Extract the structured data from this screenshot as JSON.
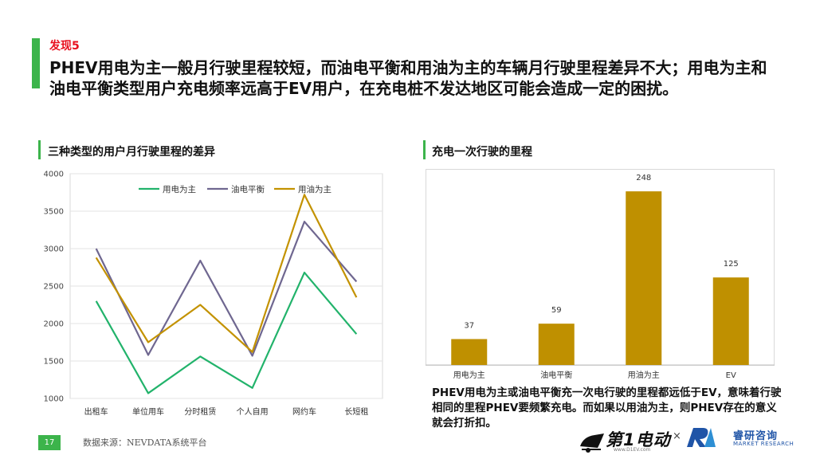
{
  "header": {
    "finding_tag": "发现5",
    "headline": "PHEV用电为主一般月行驶里程较短，而油电平衡和用油为主的车辆月行驶里程差异不大；用电为主和油电平衡类型用户充电频率远高于EV用户，在充电桩不发达地区可能会造成一定的困扰。"
  },
  "left_section": {
    "title": "三种类型的用户月行驶里程的差异"
  },
  "right_section": {
    "title": "充电一次行驶的里程"
  },
  "note": "PHEV用电为主或油电平衡充一次电行驶的里程都远低于EV，意味着行驶相同的里程PHEV要频繁充电。而如果以用油为主，则PHEV存在的意义就会打折扣。",
  "footer": {
    "page_number": "17",
    "source": "数据来源：NEVDATA系统平台",
    "logo1_text": "第1电动",
    "logo1_sub": "www.D1EV.com",
    "times_sign": "×",
    "logo2_cn": "睿研咨询",
    "logo2_en": "MARKET RESEARCH"
  },
  "colors": {
    "accent_green": "#3cb44b",
    "finding_red": "#e8101e",
    "series_electric": "#22b36b",
    "series_balanced": "#6f6790",
    "series_fuel": "#c39200",
    "bar": "#bf9000",
    "logo_blue": "#1f54a7"
  },
  "chart_data": [
    {
      "type": "line",
      "title": "",
      "categories": [
        "出租车",
        "单位用车",
        "分时租赁",
        "个人自用",
        "网约车",
        "长短租"
      ],
      "series": [
        {
          "name": "用电为主",
          "color": "#22b36b",
          "values": [
            2300,
            1070,
            1560,
            1140,
            2680,
            1860
          ]
        },
        {
          "name": "油电平衡",
          "color": "#6f6790",
          "values": [
            3000,
            1580,
            2840,
            1570,
            3360,
            2560
          ]
        },
        {
          "name": "用油为主",
          "color": "#c39200",
          "values": [
            2880,
            1750,
            2250,
            1620,
            3720,
            2350
          ]
        }
      ],
      "y_ticks": [
        1000,
        1500,
        2000,
        2500,
        3000,
        3500,
        4000
      ],
      "ylim": [
        1000,
        4000
      ],
      "legend": "top"
    },
    {
      "type": "bar",
      "title": "",
      "categories": [
        "用电为主",
        "油电平衡",
        "用油为主",
        "EV"
      ],
      "values": [
        37,
        59,
        248,
        125
      ],
      "data_labels": [
        "37",
        "59",
        "248",
        "125"
      ],
      "color": "#bf9000",
      "ylim": [
        0,
        280
      ],
      "legend": "none"
    }
  ]
}
